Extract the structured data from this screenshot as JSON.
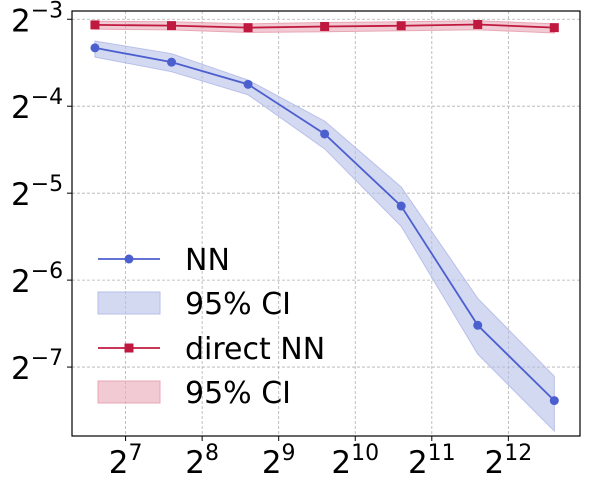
{
  "chart_data": {
    "type": "line",
    "xscale": "log2",
    "yscale": "log2",
    "x_ticks": [
      {
        "value": 128,
        "base": "2",
        "exp": "7"
      },
      {
        "value": 256,
        "base": "2",
        "exp": "8"
      },
      {
        "value": 512,
        "base": "2",
        "exp": "9"
      },
      {
        "value": 1024,
        "base": "2",
        "exp": "10"
      },
      {
        "value": 2048,
        "base": "2",
        "exp": "11"
      },
      {
        "value": 4096,
        "base": "2",
        "exp": "12"
      }
    ],
    "y_ticks": [
      {
        "value": 0.125,
        "base": "2",
        "exp": "−3"
      },
      {
        "value": 0.0625,
        "base": "2",
        "exp": "−4"
      },
      {
        "value": 0.03125,
        "base": "2",
        "exp": "−5"
      },
      {
        "value": 0.015625,
        "base": "2",
        "exp": "−6"
      },
      {
        "value": 0.0078125,
        "base": "2",
        "exp": "−7"
      }
    ],
    "xlim": [
      78.8,
      7835
    ],
    "ylim": [
      0.00451,
      0.1335
    ],
    "grid": true,
    "legend_position": "lower-left",
    "x": [
      97,
      194,
      388,
      776,
      1552,
      3104,
      6208
    ],
    "series": [
      {
        "name": "NN",
        "marker": "circle",
        "color": "#4c5fcf",
        "ci_color": "#b8bfe9",
        "values": [
          0.0995,
          0.0888,
          0.0744,
          0.0501,
          0.0282,
          0.0109,
          0.00598
        ],
        "ci_low": [
          0.0925,
          0.0823,
          0.0685,
          0.0445,
          0.024,
          0.00867,
          0.00469
        ],
        "ci_high": [
          0.105,
          0.095,
          0.077,
          0.0555,
          0.0328,
          0.0135,
          0.00726
        ]
      },
      {
        "name": "direct NN",
        "marker": "square",
        "color": "#c0193f",
        "ci_color": "#e8a7b5",
        "values": [
          0.1195,
          0.1188,
          0.1169,
          0.118,
          0.1187,
          0.1199,
          0.1169
        ],
        "ci_low": [
          0.1155,
          0.1148,
          0.1125,
          0.1132,
          0.114,
          0.115,
          0.112
        ],
        "ci_high": [
          0.123,
          0.1225,
          0.1205,
          0.1218,
          0.1225,
          0.1235,
          0.1205
        ]
      }
    ],
    "legend": [
      {
        "label": "NN",
        "kind": "line",
        "series": 0
      },
      {
        "label": "95% CI",
        "kind": "band",
        "series": 0
      },
      {
        "label": "direct NN",
        "kind": "line",
        "series": 1
      },
      {
        "label": "95% CI",
        "kind": "band",
        "series": 1
      }
    ]
  }
}
